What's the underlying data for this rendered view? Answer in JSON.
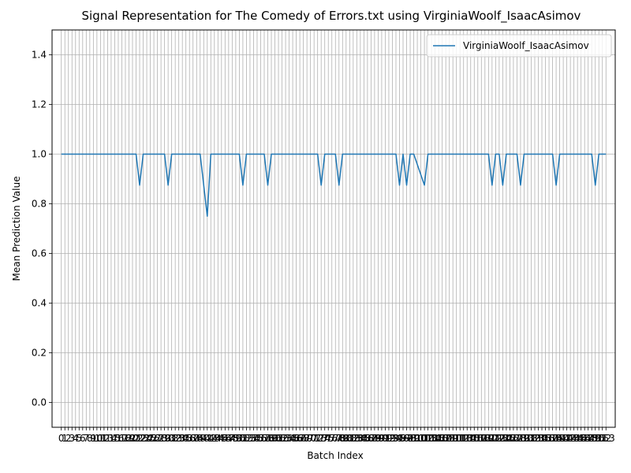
{
  "chart_data": {
    "type": "line",
    "title": "Signal Representation for The Comedy of Errors.txt using VirginiaWoolf_IsaacAsimov",
    "xlabel": "Batch Index",
    "ylabel": "Mean Prediction Value",
    "ylim": [
      -0.1,
      1.5
    ],
    "xlim": [
      -2.6,
      155.6
    ],
    "y_ticks": [
      "0.0",
      "0.2",
      "0.4",
      "0.6",
      "0.8",
      "1.0",
      "1.2",
      "1.4"
    ],
    "x_tick_labels": [
      "0",
      "1",
      "2",
      "3",
      "4",
      "5",
      "6",
      "7",
      "8",
      "9",
      "10",
      "11",
      "12",
      "13",
      "14",
      "15",
      "16",
      "17",
      "18",
      "19",
      "20",
      "21",
      "22",
      "23",
      "24",
      "25",
      "26",
      "27",
      "28",
      "29",
      "30",
      "31",
      "32",
      "33",
      "34",
      "35",
      "36",
      "37",
      "38",
      "39",
      "40",
      "41",
      "42",
      "43",
      "44",
      "45",
      "46",
      "47",
      "48",
      "49",
      "50",
      "51",
      "52",
      "53",
      "54",
      "55",
      "56",
      "57",
      "58",
      "59",
      "60",
      "61",
      "62",
      "63",
      "64",
      "65",
      "66",
      "67",
      "68",
      "69",
      "70",
      "71",
      "72",
      "73",
      "74",
      "75",
      "76",
      "77",
      "78",
      "79",
      "80",
      "81",
      "82",
      "83",
      "84",
      "85",
      "86",
      "87",
      "88",
      "89",
      "90",
      "91",
      "92",
      "93",
      "94",
      "95",
      "96",
      "97",
      "98",
      "99",
      "100",
      "101",
      "102",
      "103",
      "104",
      "105",
      "106",
      "107",
      "108",
      "109",
      "110",
      "111",
      "112",
      "113",
      "114",
      "115",
      "116",
      "117",
      "118",
      "119",
      "120",
      "121",
      "122",
      "123",
      "124",
      "125",
      "126",
      "127",
      "128",
      "129",
      "130",
      "131",
      "132",
      "133",
      "134",
      "135",
      "136",
      "137",
      "138",
      "139",
      "140",
      "141",
      "142",
      "143",
      "144",
      "145",
      "146",
      "147",
      "148",
      "149",
      "150",
      "151",
      "152",
      "153"
    ],
    "grid": true,
    "legend_position": "top-right",
    "series": [
      {
        "name": "VirginiaWoolf_IsaacAsimov",
        "color": "#1f77b4",
        "x": [
          0,
          21,
          22,
          23,
          29,
          30,
          31,
          39,
          41,
          42,
          50,
          51,
          52,
          57,
          58,
          59,
          72,
          73,
          74,
          77,
          78,
          79,
          94,
          95,
          96,
          97,
          98,
          99,
          102,
          103,
          104,
          120,
          121,
          122,
          123,
          124,
          125,
          128,
          129,
          130,
          138,
          139,
          140,
          147,
          148,
          149,
          150,
          151,
          152,
          153
        ],
        "values": [
          1.0,
          1.0,
          0.875,
          1.0,
          1.0,
          0.875,
          1.0,
          1.0,
          0.75,
          1.0,
          1.0,
          0.875,
          1.0,
          1.0,
          0.875,
          1.0,
          1.0,
          0.875,
          1.0,
          1.0,
          0.875,
          1.0,
          1.0,
          0.875,
          1.0,
          0.875,
          1.0,
          1.0,
          0.875,
          1.0,
          1.0,
          1.0,
          0.875,
          1.0,
          1.0,
          0.875,
          1.0,
          1.0,
          0.875,
          1.0,
          1.0,
          0.875,
          1.0,
          1.0,
          1.0,
          1.0,
          0.875,
          1.0,
          1.0,
          1.0
        ]
      }
    ]
  }
}
